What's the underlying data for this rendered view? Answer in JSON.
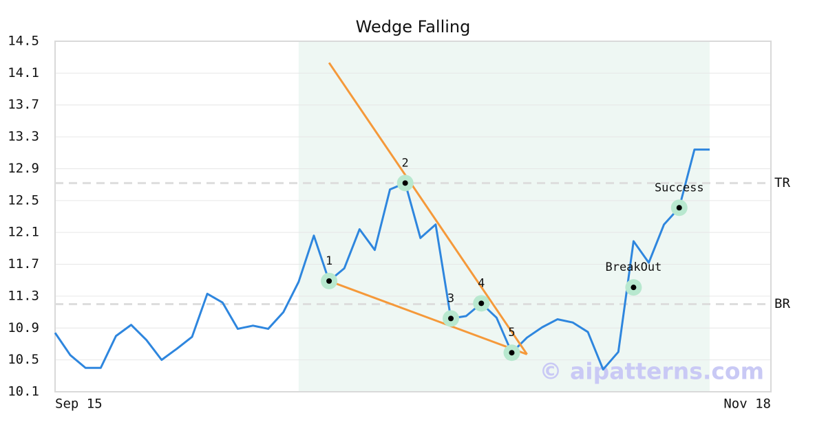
{
  "chart_data": {
    "type": "line",
    "title": "Wedge Falling",
    "categories": [
      "Sep 15",
      null,
      null,
      null,
      null,
      null,
      null,
      null,
      null,
      null,
      null,
      null,
      null,
      null,
      null,
      null,
      null,
      null,
      null,
      null,
      null,
      null,
      null,
      null,
      null,
      null,
      null,
      null,
      null,
      null,
      null,
      null,
      null,
      null,
      null,
      null,
      null,
      null,
      null,
      null,
      null,
      null,
      null,
      "Nov 18"
    ],
    "series": [
      {
        "color": "#2e86de",
        "values": [
          10.84,
          10.56,
          10.4,
          10.4,
          10.8,
          10.94,
          10.75,
          10.5,
          10.64,
          10.79,
          11.33,
          11.22,
          10.89,
          10.93,
          10.89,
          11.1,
          11.48,
          12.06,
          11.49,
          11.65,
          12.14,
          11.88,
          12.64,
          12.72,
          12.03,
          12.2,
          11.02,
          11.05,
          11.21,
          11.03,
          10.59,
          10.78,
          10.91,
          11.01,
          10.97,
          10.85,
          10.38,
          10.6,
          11.99,
          11.72,
          12.2,
          12.41,
          13.14,
          13.14
        ]
      }
    ],
    "ylim": [
      10.1,
      14.5
    ],
    "yticks": [
      {
        "value": 10.1,
        "label": "10.1"
      },
      {
        "value": 10.5,
        "label": "10.5"
      },
      {
        "value": 10.9,
        "label": "10.9"
      },
      {
        "value": 11.3,
        "label": "11.3"
      },
      {
        "value": 11.7,
        "label": "11.7"
      },
      {
        "value": 12.1,
        "label": "12.1"
      },
      {
        "value": 12.5,
        "label": "12.5"
      },
      {
        "value": 12.9,
        "label": "12.9"
      },
      {
        "value": 13.3,
        "label": "13.3"
      },
      {
        "value": 13.7,
        "label": "13.7"
      },
      {
        "value": 14.1,
        "label": "14.1"
      },
      {
        "value": 14.5,
        "label": "14.5"
      }
    ],
    "grid": true,
    "highlight_range": [
      16,
      43
    ],
    "levels": [
      {
        "label": "TR",
        "value": 12.72
      },
      {
        "label": "BR",
        "value": 11.2
      }
    ],
    "trendlines": [
      {
        "color": "#f5993a",
        "x0": 18,
        "y0": 14.23,
        "x1": 31,
        "y1": 10.57
      },
      {
        "color": "#f5993a",
        "x0": 18,
        "y0": 11.49,
        "x1": 31,
        "y1": 10.57
      }
    ],
    "pattern_points": [
      {
        "label": "1",
        "index": 18,
        "value": 11.49
      },
      {
        "label": "2",
        "index": 23,
        "value": 12.72
      },
      {
        "label": "3",
        "index": 26,
        "value": 11.02
      },
      {
        "label": "4",
        "index": 28,
        "value": 11.21
      },
      {
        "label": "5",
        "index": 30,
        "value": 10.59
      },
      {
        "label": "BreakOut",
        "index": 38,
        "value": 11.41
      },
      {
        "label": "Success",
        "index": 41,
        "value": 12.41
      }
    ],
    "watermark": "© aipatterns.com"
  }
}
